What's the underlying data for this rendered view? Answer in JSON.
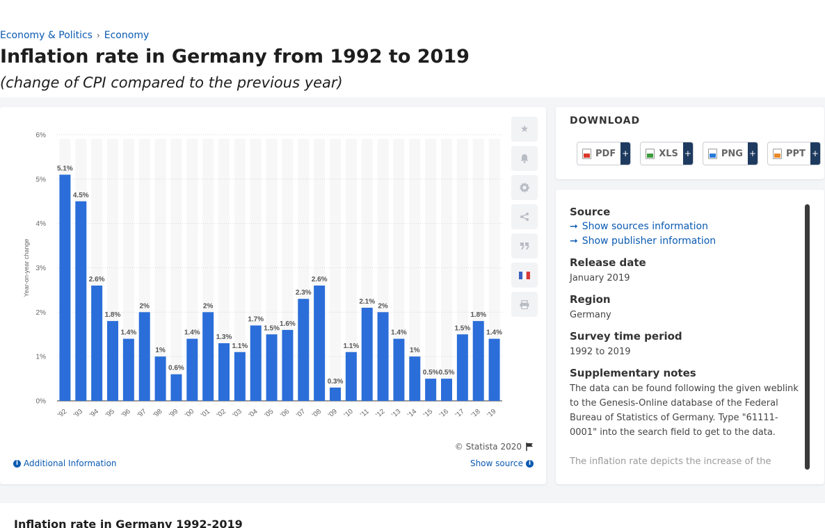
{
  "breadcrumb": {
    "item1": "Economy & Politics",
    "item2": "Economy"
  },
  "title": "Inflation rate in Germany from 1992 to 2019",
  "subtitle": "(change of CPI compared to the previous year)",
  "chart_footer": {
    "copyright": "© Statista 2020",
    "additional_info": "Additional Information",
    "show_source": "Show source"
  },
  "download": {
    "title": "DOWNLOAD",
    "buttons": [
      {
        "label": "PDF",
        "plus": "+",
        "color": "#d9382a"
      },
      {
        "label": "XLS",
        "plus": "+",
        "color": "#3d9c3d"
      },
      {
        "label": "PNG",
        "plus": "+",
        "color": "#2a7bd9"
      },
      {
        "label": "PPT",
        "plus": "+",
        "color": "#e8882a"
      }
    ]
  },
  "tools": [
    "star-icon",
    "bell-icon",
    "gear-icon",
    "share-icon",
    "quote-icon",
    "flag-fr-icon",
    "print-icon"
  ],
  "info": {
    "source_label": "Source",
    "show_sources": "Show sources information",
    "show_publisher": "Show publisher information",
    "release_label": "Release date",
    "release_value": "January 2019",
    "region_label": "Region",
    "region_value": "Germany",
    "survey_label": "Survey time period",
    "survey_value": "1992 to 2019",
    "notes_label": "Supplementary notes",
    "notes_value": "The data can be found following the given weblink to the Genesis-Online database of the Federal Bureau of Statistics of Germany. Type \"61111-0001\" into the search field to get to the data.",
    "notes_value2": "The inflation rate depicts the increase of the"
  },
  "bottom_title": "Inflation rate in Germany 1992-2019",
  "chart_data": {
    "type": "bar",
    "categories": [
      "'92",
      "'93",
      "'94",
      "'95",
      "'96",
      "'97",
      "'98",
      "'99",
      "'00",
      "'01",
      "'02",
      "'03",
      "'04",
      "'05",
      "'06",
      "'07",
      "'08",
      "'09",
      "'10",
      "'11",
      "'12",
      "'13",
      "'14",
      "'15",
      "'16",
      "'17",
      "'18",
      "'19"
    ],
    "values": [
      5.1,
      4.5,
      2.6,
      1.8,
      1.4,
      2,
      1,
      0.6,
      1.4,
      2,
      1.3,
      1.1,
      1.7,
      1.5,
      1.6,
      2.3,
      2.6,
      0.3,
      1.1,
      2.1,
      2,
      1.4,
      1,
      0.5,
      0.5,
      1.5,
      1.8,
      1.4
    ],
    "labels": [
      "5.1%",
      "4.5%",
      "2.6%",
      "1.8%",
      "1.4%",
      "2%",
      "1%",
      "0.6%",
      "1.4%",
      "2%",
      "1.3%",
      "1.1%",
      "1.7%",
      "1.5%",
      "1.6%",
      "2.3%",
      "2.6%",
      "0.3%",
      "1.1%",
      "2.1%",
      "2%",
      "1.4%",
      "1%",
      "0.5%",
      "0.5%",
      "1.5%",
      "1.8%",
      "1.4%"
    ],
    "ylabel": "Year-on-year change",
    "yticks": [
      "0%",
      "1%",
      "2%",
      "3%",
      "4%",
      "5%",
      "6%"
    ],
    "ylim": [
      0,
      6
    ],
    "bar_color": "#2b6ed9",
    "grid": true
  }
}
